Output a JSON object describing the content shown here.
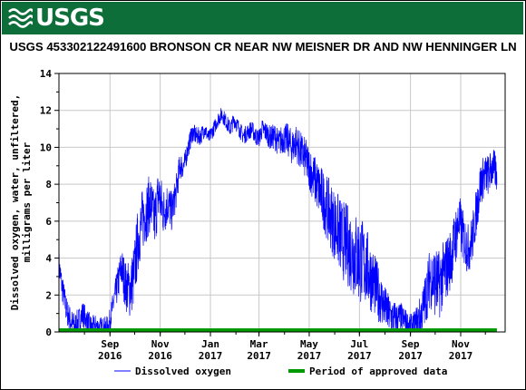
{
  "header": {
    "logo_text": "USGS",
    "logo_icon": "usgs-wave-icon",
    "banner_color": "#0e6e3a"
  },
  "chart_data": {
    "type": "line",
    "title": "USGS 453302122491600 BRONSON CR NEAR NW MEISNER DR AND NW HENNINGER LN",
    "ylabel_lines": [
      "Dissolved oxygen, water, unfiltered,",
      "milligrams per liter"
    ],
    "ylim": [
      0,
      14
    ],
    "yticks": [
      0,
      2,
      4,
      6,
      8,
      10,
      12,
      14
    ],
    "x_ticks": [
      {
        "month": "Sep",
        "year": "2016",
        "date": "2016-09-01"
      },
      {
        "month": "Nov",
        "year": "2016",
        "date": "2016-11-01"
      },
      {
        "month": "Jan",
        "year": "2017",
        "date": "2017-01-01"
      },
      {
        "month": "Mar",
        "year": "2017",
        "date": "2017-03-01"
      },
      {
        "month": "May",
        "year": "2017",
        "date": "2017-05-01"
      },
      {
        "month": "Jul",
        "year": "2017",
        "date": "2017-07-01"
      },
      {
        "month": "Sep",
        "year": "2017",
        "date": "2017-09-01"
      },
      {
        "month": "Nov",
        "year": "2017",
        "date": "2017-11-01"
      }
    ],
    "xlim": [
      "2016-07-01",
      "2017-12-25"
    ],
    "grid": true,
    "legend_position": "bottom",
    "series": [
      {
        "name": "Dissolved oxygen",
        "color": "#0000ff",
        "points": [
          [
            "2016-07-01",
            3.6
          ],
          [
            "2016-07-05",
            2.4
          ],
          [
            "2016-07-10",
            1.2
          ],
          [
            "2016-07-15",
            0.6
          ],
          [
            "2016-07-20",
            0.3
          ],
          [
            "2016-07-25",
            0.6
          ],
          [
            "2016-07-30",
            1.0
          ],
          [
            "2016-08-05",
            0.5
          ],
          [
            "2016-08-10",
            0.2
          ],
          [
            "2016-08-15",
            0.3
          ],
          [
            "2016-08-20",
            0.2
          ],
          [
            "2016-08-25",
            0.2
          ],
          [
            "2016-08-30",
            0.3
          ],
          [
            "2016-09-05",
            1.5
          ],
          [
            "2016-09-10",
            2.5
          ],
          [
            "2016-09-15",
            3.5
          ],
          [
            "2016-09-20",
            2.5
          ],
          [
            "2016-09-25",
            2.3
          ],
          [
            "2016-09-30",
            3.0
          ],
          [
            "2016-10-05",
            5.0
          ],
          [
            "2016-10-10",
            6.0
          ],
          [
            "2016-10-15",
            6.5
          ],
          [
            "2016-10-20",
            7.0
          ],
          [
            "2016-10-25",
            6.0
          ],
          [
            "2016-10-30",
            7.5
          ],
          [
            "2016-11-05",
            6.5
          ],
          [
            "2016-11-10",
            7.0
          ],
          [
            "2016-11-15",
            6.5
          ],
          [
            "2016-11-20",
            7.5
          ],
          [
            "2016-11-25",
            9.0
          ],
          [
            "2016-11-30",
            9.0
          ],
          [
            "2016-12-05",
            10.0
          ],
          [
            "2016-12-10",
            10.8
          ],
          [
            "2016-12-15",
            10.6
          ],
          [
            "2016-12-20",
            10.6
          ],
          [
            "2016-12-25",
            11.0
          ],
          [
            "2016-12-30",
            10.5
          ],
          [
            "2017-01-05",
            11.0
          ],
          [
            "2017-01-10",
            11.5
          ],
          [
            "2017-01-15",
            11.8
          ],
          [
            "2017-01-20",
            11.4
          ],
          [
            "2017-01-25",
            11.0
          ],
          [
            "2017-01-30",
            11.5
          ],
          [
            "2017-02-05",
            11.0
          ],
          [
            "2017-02-10",
            10.6
          ],
          [
            "2017-02-15",
            10.8
          ],
          [
            "2017-02-20",
            11.0
          ],
          [
            "2017-02-25",
            10.6
          ],
          [
            "2017-03-01",
            10.5
          ],
          [
            "2017-03-05",
            11.0
          ],
          [
            "2017-03-10",
            10.8
          ],
          [
            "2017-03-15",
            10.5
          ],
          [
            "2017-03-20",
            10.6
          ],
          [
            "2017-03-25",
            10.2
          ],
          [
            "2017-03-30",
            10.5
          ],
          [
            "2017-04-05",
            10.4
          ],
          [
            "2017-04-10",
            10.0
          ],
          [
            "2017-04-15",
            10.3
          ],
          [
            "2017-04-20",
            9.8
          ],
          [
            "2017-04-25",
            9.5
          ],
          [
            "2017-04-30",
            9.0
          ],
          [
            "2017-05-05",
            8.5
          ],
          [
            "2017-05-10",
            8.0
          ],
          [
            "2017-05-15",
            7.5
          ],
          [
            "2017-05-20",
            7.0
          ],
          [
            "2017-05-25",
            6.5
          ],
          [
            "2017-05-30",
            6.0
          ],
          [
            "2017-06-05",
            5.5
          ],
          [
            "2017-06-10",
            5.0
          ],
          [
            "2017-06-15",
            4.8
          ],
          [
            "2017-06-20",
            4.5
          ],
          [
            "2017-06-25",
            4.2
          ],
          [
            "2017-06-30",
            4.0
          ],
          [
            "2017-07-05",
            3.8
          ],
          [
            "2017-07-10",
            3.5
          ],
          [
            "2017-07-15",
            3.0
          ],
          [
            "2017-07-20",
            2.5
          ],
          [
            "2017-07-25",
            2.0
          ],
          [
            "2017-07-30",
            1.5
          ],
          [
            "2017-08-05",
            1.0
          ],
          [
            "2017-08-10",
            0.8
          ],
          [
            "2017-08-15",
            0.7
          ],
          [
            "2017-08-20",
            0.8
          ],
          [
            "2017-08-25",
            0.6
          ],
          [
            "2017-08-30",
            0.4
          ],
          [
            "2017-09-05",
            0.3
          ],
          [
            "2017-09-10",
            0.6
          ],
          [
            "2017-09-15",
            1.0
          ],
          [
            "2017-09-20",
            2.0
          ],
          [
            "2017-09-25",
            3.0
          ],
          [
            "2017-09-30",
            2.8
          ],
          [
            "2017-10-05",
            2.5
          ],
          [
            "2017-10-10",
            3.0
          ],
          [
            "2017-10-15",
            3.5
          ],
          [
            "2017-10-20",
            4.0
          ],
          [
            "2017-10-25",
            5.0
          ],
          [
            "2017-10-30",
            6.0
          ],
          [
            "2017-11-05",
            5.0
          ],
          [
            "2017-11-10",
            4.5
          ],
          [
            "2017-11-15",
            5.0
          ],
          [
            "2017-11-20",
            6.5
          ],
          [
            "2017-11-25",
            8.0
          ],
          [
            "2017-11-30",
            8.5
          ],
          [
            "2017-12-05",
            8.5
          ],
          [
            "2017-12-10",
            9.0
          ],
          [
            "2017-12-15",
            8.5
          ]
        ],
        "spread": [
          [
            "2016-07-01",
            0.8
          ],
          [
            "2016-09-01",
            0.6
          ],
          [
            "2016-10-01",
            1.8
          ],
          [
            "2016-11-01",
            1.5
          ],
          [
            "2016-12-01",
            0.6
          ],
          [
            "2017-01-01",
            0.4
          ],
          [
            "2017-03-01",
            0.5
          ],
          [
            "2017-05-01",
            1.2
          ],
          [
            "2017-06-01",
            2.0
          ],
          [
            "2017-07-01",
            2.5
          ],
          [
            "2017-08-01",
            1.2
          ],
          [
            "2017-09-01",
            0.6
          ],
          [
            "2017-10-01",
            2.0
          ],
          [
            "2017-11-01",
            1.5
          ],
          [
            "2017-12-15",
            1.0
          ]
        ]
      }
    ],
    "approved_period": {
      "name": "Period of approved data",
      "color": "#009900",
      "start": "2016-07-01",
      "end": "2017-12-15",
      "value": 0.1
    }
  }
}
